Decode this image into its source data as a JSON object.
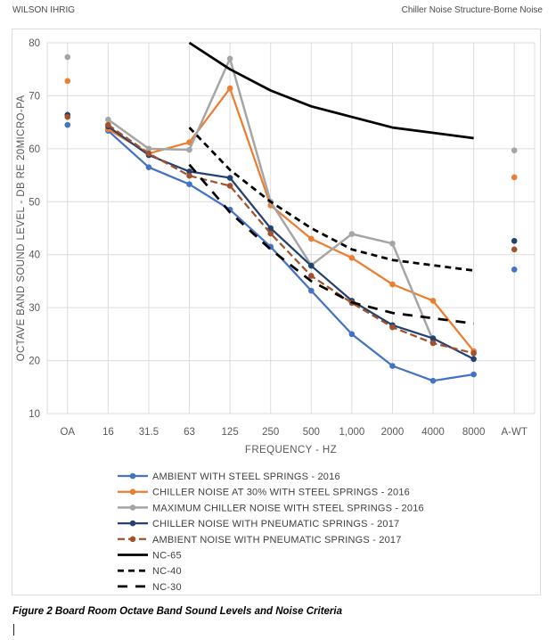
{
  "header": {
    "left": "WILSON IHRIG",
    "right": "Chiller Noise Structure-Borne Noise"
  },
  "caption": "Figure 2 Board Room Octave Band Sound Levels and Noise Criteria",
  "chart_data": {
    "type": "line",
    "title": "",
    "xlabel": "FREQUENCY - HZ",
    "ylabel": "OCTAVE BAND SOUND LEVEL - DB RE 20MICRO-PA",
    "ylim": [
      10,
      80
    ],
    "ytick_step": 10,
    "grid": true,
    "legend_position": "bottom-left",
    "categories": [
      "OA",
      "16",
      "31.5",
      "63",
      "125",
      "250",
      "500",
      "1,000",
      "2000",
      "4000",
      "8000",
      "A-WT"
    ],
    "colors": {
      "grid": "#dcdcdc",
      "tick_text": "#595959",
      "legend_text": "#404040"
    },
    "notes": "OA and A-WT columns are isolated points (no connecting line); NC criterion curves span 63 Hz to 8000 Hz only.",
    "series": [
      {
        "name": "AMBIENT WITH STEEL SPRINGS - 2016",
        "color": "#4472C4",
        "marker": true,
        "dash": null,
        "width": 2.25,
        "values": [
          64.5,
          63.4,
          56.5,
          53.3,
          48.5,
          41.5,
          33.2,
          25.0,
          19.0,
          16.2,
          17.4,
          37.2
        ]
      },
      {
        "name": "CHILLER NOISE AT 30% WITH STEEL SPRINGS - 2016",
        "color": "#ED7D31",
        "marker": true,
        "dash": null,
        "width": 2.25,
        "values": [
          72.8,
          63.7,
          59.1,
          61.2,
          71.4,
          49.3,
          43.0,
          39.4,
          34.4,
          31.3,
          21.8,
          54.6
        ]
      },
      {
        "name": "MAXIMUM CHILLER NOISE WITH STEEL SPRINGS - 2016",
        "color": "#A5A5A5",
        "marker": true,
        "dash": null,
        "width": 2.5,
        "values": [
          77.3,
          65.5,
          60.0,
          59.8,
          77.0,
          50.0,
          38.0,
          43.9,
          42.1,
          23.8,
          null,
          59.7
        ]
      },
      {
        "name": "CHILLER NOISE WITH PNEUMATIC SPRINGS - 2017",
        "color": "#234271",
        "marker": true,
        "dash": null,
        "width": 2.25,
        "values": [
          66.4,
          64.2,
          58.8,
          55.7,
          54.5,
          45.0,
          37.9,
          31.3,
          26.7,
          24.2,
          20.3,
          42.6
        ]
      },
      {
        "name": "AMBIENT NOISE WITH PNEUMATIC SPRINGS - 2017",
        "color": "#A0522D",
        "marker": true,
        "dash": [
          8,
          4
        ],
        "width": 2.25,
        "values": [
          66.0,
          64.5,
          59.1,
          54.9,
          53.0,
          44.0,
          36.0,
          30.9,
          26.3,
          23.3,
          21.4,
          41.0
        ]
      },
      {
        "name": "NC-65",
        "color": "#000000",
        "marker": false,
        "dash": null,
        "width": 2.75,
        "values": [
          null,
          null,
          null,
          80,
          75,
          71,
          68,
          66,
          64,
          63,
          62,
          null
        ]
      },
      {
        "name": "NC-40",
        "color": "#000000",
        "marker": false,
        "dash": [
          7,
          5
        ],
        "width": 2.75,
        "values": [
          null,
          null,
          null,
          64,
          56,
          50,
          45,
          41,
          39,
          38,
          37,
          null
        ]
      },
      {
        "name": "NC-30",
        "color": "#000000",
        "marker": false,
        "dash": [
          11,
          9
        ],
        "width": 2.75,
        "values": [
          null,
          null,
          null,
          57,
          48,
          41,
          35,
          31,
          29,
          28,
          27,
          null
        ]
      }
    ]
  }
}
